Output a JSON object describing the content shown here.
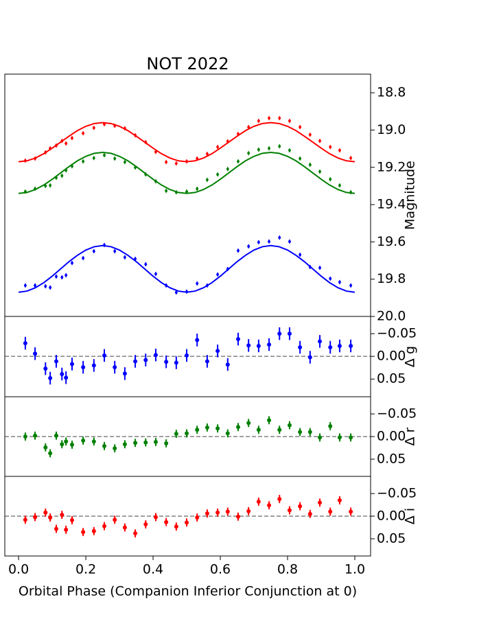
{
  "chart_data": [
    {
      "type": "scatter",
      "title": "NOT 2022",
      "ylabel": "Magnitude",
      "yaxis_side": "right",
      "invert_y": true,
      "xlim": [
        -0.041,
        1.047
      ],
      "ylim": [
        18.7,
        20.0
      ],
      "yticks": [
        18.8,
        {
          "value": 19.0,
          "label": "19.0"
        },
        19.2,
        19.4,
        19.6,
        19.8,
        {
          "value": 20.0,
          "label": "20.0"
        }
      ],
      "series": [
        {
          "kind": "errorbar",
          "marker": "diamond",
          "color": "#ff0000",
          "error": 0.004,
          "x": [
            0.02,
            0.049,
            0.08,
            0.094,
            0.112,
            0.129,
            0.141,
            0.159,
            0.192,
            0.224,
            0.255,
            0.286,
            0.316,
            0.347,
            0.378,
            0.408,
            0.439,
            0.469,
            0.5,
            0.531,
            0.561,
            0.592,
            0.622,
            0.653,
            0.684,
            0.714,
            0.745,
            0.776,
            0.806,
            0.837,
            0.867,
            0.896,
            0.927,
            0.955,
            0.988
          ],
          "values": [
            19.164,
            19.153,
            19.12,
            19.098,
            19.083,
            19.058,
            19.072,
            19.043,
            19.017,
            18.988,
            18.969,
            18.977,
            18.991,
            19.028,
            19.065,
            19.117,
            19.172,
            19.179,
            19.168,
            19.153,
            19.128,
            19.091,
            19.061,
            19.021,
            18.984,
            18.951,
            18.936,
            18.936,
            18.951,
            18.984,
            19.025,
            19.058,
            19.091,
            19.109,
            19.15
          ]
        },
        {
          "kind": "errorbar",
          "marker": "diamond",
          "color": "#008000",
          "error": 0.005,
          "x": [
            0.02,
            0.049,
            0.08,
            0.094,
            0.112,
            0.129,
            0.141,
            0.159,
            0.192,
            0.224,
            0.255,
            0.286,
            0.316,
            0.347,
            0.378,
            0.408,
            0.439,
            0.469,
            0.5,
            0.531,
            0.561,
            0.592,
            0.622,
            0.653,
            0.684,
            0.714,
            0.745,
            0.776,
            0.806,
            0.837,
            0.867,
            0.896,
            0.927,
            0.955,
            0.988
          ],
          "values": [
            19.33,
            19.315,
            19.3,
            19.297,
            19.256,
            19.245,
            19.216,
            19.194,
            19.168,
            19.15,
            19.135,
            19.153,
            19.172,
            19.201,
            19.238,
            19.275,
            19.326,
            19.334,
            19.33,
            19.315,
            19.267,
            19.238,
            19.209,
            19.168,
            19.124,
            19.105,
            19.098,
            19.087,
            19.109,
            19.153,
            19.186,
            19.223,
            19.264,
            19.297,
            19.334
          ]
        },
        {
          "kind": "errorbar",
          "marker": "diamond",
          "color": "#0000ff",
          "error": 0.008,
          "x": [
            0.02,
            0.049,
            0.08,
            0.094,
            0.112,
            0.129,
            0.141,
            0.159,
            0.192,
            0.224,
            0.255,
            0.286,
            0.316,
            0.347,
            0.378,
            0.408,
            0.439,
            0.469,
            0.5,
            0.531,
            0.561,
            0.592,
            0.622,
            0.653,
            0.684,
            0.714,
            0.745,
            0.776,
            0.806,
            0.837,
            0.867,
            0.896,
            0.927,
            0.955,
            0.988
          ],
          "values": [
            19.834,
            19.834,
            19.838,
            19.845,
            19.786,
            19.79,
            19.779,
            19.713,
            19.687,
            19.65,
            19.617,
            19.65,
            19.683,
            19.691,
            19.72,
            19.772,
            19.834,
            19.871,
            19.867,
            19.823,
            19.834,
            19.775,
            19.746,
            19.647,
            19.624,
            19.602,
            19.598,
            19.577,
            19.598,
            19.669,
            19.735,
            19.739,
            19.797,
            19.816,
            19.834
          ]
        },
        {
          "kind": "line",
          "color": "#ff0000",
          "x": [
            0,
            0.025,
            0.05,
            0.075,
            0.1,
            0.125,
            0.15,
            0.175,
            0.2,
            0.225,
            0.25,
            0.275,
            0.3,
            0.325,
            0.35,
            0.375,
            0.4,
            0.425,
            0.45,
            0.475,
            0.5,
            0.525,
            0.55,
            0.575,
            0.6,
            0.625,
            0.65,
            0.675,
            0.7,
            0.725,
            0.75,
            0.775,
            0.8,
            0.825,
            0.85,
            0.875,
            0.9,
            0.925,
            0.95,
            0.975,
            1
          ],
          "values": [
            19.17,
            19.165,
            19.15,
            19.127,
            19.097,
            19.065,
            19.033,
            19.003,
            18.98,
            18.965,
            18.96,
            18.965,
            18.98,
            19.003,
            19.033,
            19.065,
            19.097,
            19.127,
            19.15,
            19.165,
            19.17,
            19.165,
            19.15,
            19.127,
            19.097,
            19.065,
            19.033,
            19.003,
            18.98,
            18.965,
            18.96,
            18.965,
            18.98,
            19.003,
            19.033,
            19.065,
            19.097,
            19.127,
            19.15,
            19.165,
            19.17
          ]
        },
        {
          "kind": "line",
          "color": "#008000",
          "x": [
            0,
            0.025,
            0.05,
            0.075,
            0.1,
            0.125,
            0.15,
            0.175,
            0.2,
            0.225,
            0.25,
            0.275,
            0.3,
            0.325,
            0.35,
            0.375,
            0.4,
            0.425,
            0.45,
            0.475,
            0.5,
            0.525,
            0.55,
            0.575,
            0.6,
            0.625,
            0.65,
            0.675,
            0.7,
            0.725,
            0.75,
            0.775,
            0.8,
            0.825,
            0.85,
            0.875,
            0.9,
            0.925,
            0.95,
            0.975,
            1
          ],
          "values": [
            19.34,
            19.335,
            19.319,
            19.295,
            19.264,
            19.23,
            19.196,
            19.165,
            19.141,
            19.125,
            19.12,
            19.125,
            19.141,
            19.165,
            19.196,
            19.23,
            19.264,
            19.295,
            19.319,
            19.335,
            19.34,
            19.335,
            19.319,
            19.295,
            19.264,
            19.23,
            19.196,
            19.165,
            19.141,
            19.125,
            19.12,
            19.125,
            19.141,
            19.165,
            19.196,
            19.23,
            19.264,
            19.295,
            19.319,
            19.335,
            19.34
          ]
        },
        {
          "kind": "line",
          "color": "#0000ff",
          "x": [
            0,
            0.025,
            0.05,
            0.075,
            0.1,
            0.125,
            0.15,
            0.175,
            0.2,
            0.225,
            0.25,
            0.275,
            0.3,
            0.325,
            0.35,
            0.375,
            0.4,
            0.425,
            0.45,
            0.475,
            0.5,
            0.525,
            0.55,
            0.575,
            0.6,
            0.625,
            0.65,
            0.675,
            0.7,
            0.725,
            0.75,
            0.775,
            0.8,
            0.825,
            0.85,
            0.875,
            0.9,
            0.925,
            0.95,
            0.975,
            1
          ],
          "values": [
            19.87,
            19.864,
            19.846,
            19.819,
            19.784,
            19.745,
            19.706,
            19.672,
            19.644,
            19.626,
            19.62,
            19.626,
            19.644,
            19.672,
            19.706,
            19.745,
            19.784,
            19.819,
            19.846,
            19.864,
            19.87,
            19.864,
            19.846,
            19.819,
            19.784,
            19.745,
            19.706,
            19.672,
            19.644,
            19.626,
            19.62,
            19.626,
            19.644,
            19.672,
            19.706,
            19.745,
            19.784,
            19.819,
            19.846,
            19.864,
            19.87
          ]
        }
      ]
    },
    {
      "type": "scatter",
      "ylabel": "Δ g",
      "yaxis_side": "right",
      "invert_y": true,
      "reference_line": 0,
      "xlim": [
        -0.041,
        1.047
      ],
      "ylim": [
        -0.088,
        0.089
      ],
      "yticks": [
        {
          "value": -0.05,
          "label": "−0.05"
        },
        {
          "value": 0,
          "label": "0.00"
        },
        0.05
      ],
      "series": [
        {
          "kind": "errorbar",
          "marker": "circle",
          "color": "#0000ff",
          "error": 0.014,
          "x": [
            0.02,
            0.049,
            0.08,
            0.094,
            0.112,
            0.129,
            0.141,
            0.159,
            0.192,
            0.224,
            0.255,
            0.286,
            0.316,
            0.347,
            0.378,
            0.408,
            0.439,
            0.469,
            0.5,
            0.531,
            0.561,
            0.592,
            0.622,
            0.653,
            0.684,
            0.714,
            0.745,
            0.776,
            0.806,
            0.837,
            0.867,
            0.896,
            0.927,
            0.955,
            0.988
          ],
          "values": [
            -0.029,
            -0.006,
            0.027,
            0.048,
            0.011,
            0.039,
            0.047,
            0.017,
            0.024,
            0.02,
            -0.002,
            0.024,
            0.038,
            0.011,
            0.008,
            -0.003,
            0.012,
            0.014,
            -0.002,
            -0.036,
            0.011,
            -0.012,
            0.018,
            -0.038,
            -0.024,
            -0.023,
            -0.026,
            -0.05,
            -0.05,
            -0.02,
            0.002,
            -0.033,
            -0.02,
            -0.023,
            -0.023
          ]
        }
      ]
    },
    {
      "type": "scatter",
      "ylabel": "Δ r",
      "yaxis_side": "right",
      "invert_y": true,
      "reference_line": 0,
      "xlim": [
        -0.041,
        1.047
      ],
      "ylim": [
        -0.088,
        0.088
      ],
      "yticks": [
        {
          "value": -0.05,
          "label": "−0.05"
        },
        {
          "value": 0,
          "label": "0.00"
        },
        0.05
      ],
      "series": [
        {
          "kind": "errorbar",
          "marker": "circle",
          "color": "#008000",
          "error": 0.009,
          "x": [
            0.02,
            0.049,
            0.08,
            0.094,
            0.112,
            0.129,
            0.141,
            0.159,
            0.192,
            0.224,
            0.255,
            0.286,
            0.316,
            0.347,
            0.378,
            0.408,
            0.439,
            0.469,
            0.5,
            0.531,
            0.561,
            0.592,
            0.622,
            0.653,
            0.684,
            0.714,
            0.745,
            0.776,
            0.806,
            0.837,
            0.867,
            0.896,
            0.927,
            0.955,
            0.988
          ],
          "values": [
            0.0,
            -0.002,
            0.024,
            0.037,
            -0.002,
            0.017,
            0.011,
            0.018,
            0.009,
            0.011,
            0.021,
            0.026,
            0.017,
            0.014,
            0.013,
            0.012,
            0.015,
            -0.006,
            -0.007,
            -0.015,
            -0.02,
            -0.018,
            -0.007,
            -0.021,
            -0.03,
            -0.015,
            -0.036,
            -0.015,
            -0.025,
            -0.01,
            -0.01,
            0.002,
            -0.023,
            0.002,
            0.002
          ]
        }
      ]
    },
    {
      "type": "scatter",
      "ylabel": "Δ i",
      "yaxis_side": "right",
      "invert_y": true,
      "reference_line": 0,
      "xlim": [
        -0.041,
        1.047
      ],
      "ylim": [
        -0.088,
        0.088
      ],
      "yticks": [
        {
          "value": -0.05,
          "label": "−0.05"
        },
        {
          "value": 0,
          "label": "0.00"
        },
        0.05
      ],
      "xlabel": "Orbital Phase (Companion Inferior Conjunction at 0)",
      "xticks": [
        {
          "value": 0,
          "label": "0.0"
        },
        0.2,
        0.4,
        0.6,
        0.8,
        {
          "value": 1,
          "label": "1.0"
        }
      ],
      "series": [
        {
          "kind": "errorbar",
          "marker": "circle",
          "color": "#ff0000",
          "error": 0.009,
          "x": [
            0.02,
            0.049,
            0.08,
            0.094,
            0.112,
            0.129,
            0.141,
            0.159,
            0.192,
            0.224,
            0.255,
            0.286,
            0.316,
            0.347,
            0.378,
            0.408,
            0.439,
            0.469,
            0.5,
            0.531,
            0.561,
            0.592,
            0.622,
            0.653,
            0.684,
            0.714,
            0.745,
            0.776,
            0.806,
            0.837,
            0.867,
            0.896,
            0.927,
            0.955,
            0.988
          ],
          "values": [
            0.008,
            0.002,
            -0.008,
            0.003,
            0.028,
            -0.003,
            0.03,
            0.009,
            0.035,
            0.033,
            0.022,
            0.008,
            0.025,
            0.038,
            0.018,
            0.002,
            0.013,
            0.023,
            0.014,
            0.003,
            -0.006,
            -0.008,
            -0.01,
            0.001,
            -0.011,
            -0.032,
            -0.024,
            -0.038,
            -0.013,
            -0.022,
            -0.005,
            -0.03,
            -0.01,
            -0.035,
            -0.01
          ]
        }
      ]
    }
  ]
}
